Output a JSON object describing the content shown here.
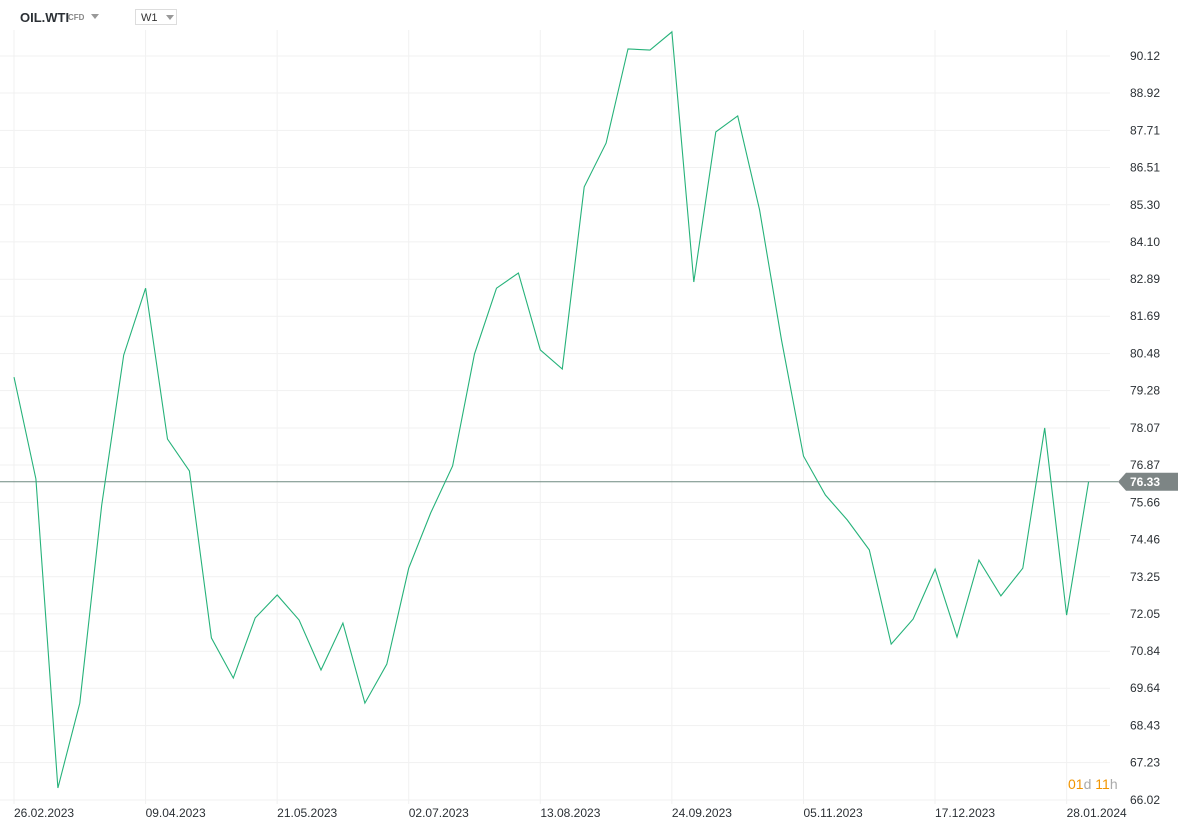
{
  "header": {
    "symbol": "OIL.WTI",
    "symbol_type": "CFD",
    "timeframe": "W1"
  },
  "current_price_label": "76.33",
  "timer": {
    "days": "01",
    "days_unit": "d",
    "hours": "11",
    "hours_unit": "h"
  },
  "colors": {
    "line": "#26b27a",
    "price_line": "#6e8a80",
    "price_badge": "#7d8585",
    "timer_accent": "#f29500"
  },
  "chart_data": {
    "type": "line",
    "title": "",
    "xlabel": "",
    "ylabel": "",
    "ylim": [
      66.02,
      90.12
    ],
    "grid": true,
    "y_ticks": [
      "90.12",
      "88.92",
      "87.71",
      "86.51",
      "85.30",
      "84.10",
      "82.89",
      "81.69",
      "80.48",
      "79.28",
      "78.07",
      "76.87",
      "75.66",
      "74.46",
      "73.25",
      "72.05",
      "70.84",
      "69.64",
      "68.43",
      "67.23",
      "66.02"
    ],
    "x_tick_labels": [
      "26.02.2023",
      "09.04.2023",
      "21.05.2023",
      "02.07.2023",
      "13.08.2023",
      "24.09.2023",
      "05.11.2023",
      "17.12.2023",
      "28.01.2024"
    ],
    "x": [
      "2023-02-26",
      "2023-03-05",
      "2023-03-12",
      "2023-03-19",
      "2023-03-26",
      "2023-04-02",
      "2023-04-09",
      "2023-04-16",
      "2023-04-23",
      "2023-04-30",
      "2023-05-07",
      "2023-05-14",
      "2023-05-21",
      "2023-05-28",
      "2023-06-04",
      "2023-06-11",
      "2023-06-18",
      "2023-06-25",
      "2023-07-02",
      "2023-07-09",
      "2023-07-16",
      "2023-07-23",
      "2023-07-30",
      "2023-08-06",
      "2023-08-13",
      "2023-08-20",
      "2023-08-27",
      "2023-09-03",
      "2023-09-10",
      "2023-09-17",
      "2023-09-24",
      "2023-10-01",
      "2023-10-08",
      "2023-10-15",
      "2023-10-22",
      "2023-10-29",
      "2023-11-05",
      "2023-11-12",
      "2023-11-19",
      "2023-11-26",
      "2023-12-03",
      "2023-12-10",
      "2023-12-17",
      "2023-12-24",
      "2023-12-31",
      "2024-01-07",
      "2024-01-14",
      "2024-01-21",
      "2024-01-28",
      "2024-02-04"
    ],
    "series": [
      {
        "values": [
          79.72,
          76.42,
          66.41,
          69.16,
          75.57,
          80.43,
          82.6,
          77.71,
          76.68,
          71.27,
          69.97,
          71.92,
          72.66,
          71.85,
          70.23,
          71.75,
          69.16,
          70.42,
          73.53,
          75.32,
          76.84,
          80.47,
          82.6,
          83.09,
          80.6,
          79.98,
          85.88,
          87.3,
          90.35,
          90.31,
          90.9,
          82.8,
          87.66,
          88.18,
          85.13,
          80.92,
          77.16,
          75.9,
          75.09,
          74.12,
          71.07,
          71.88,
          73.5,
          71.3,
          73.79,
          72.63,
          73.53,
          78.07,
          72.01,
          76.33
        ]
      }
    ],
    "current_value": 76.33
  }
}
